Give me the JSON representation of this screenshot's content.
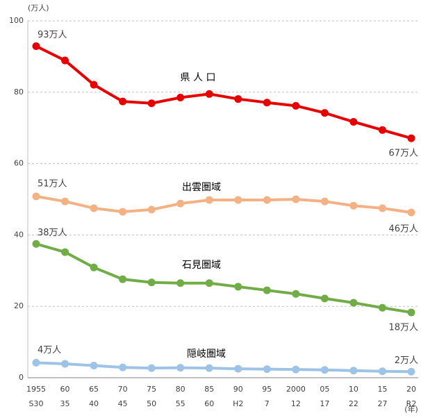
{
  "chart_data": {
    "type": "line",
    "y_unit": "(万人)",
    "x_unit": "(年)",
    "categories": [
      "1955",
      "60",
      "65",
      "70",
      "75",
      "80",
      "85",
      "90",
      "95",
      "2000",
      "05",
      "10",
      "15",
      "20"
    ],
    "era_labels": [
      "S30",
      "35",
      "40",
      "45",
      "50",
      "55",
      "60",
      "H2",
      "7",
      "12",
      "17",
      "22",
      "27",
      "R2"
    ],
    "ylim": [
      0,
      100
    ],
    "yticks": [
      0,
      20,
      40,
      60,
      80,
      100
    ],
    "grid": true,
    "series": [
      {
        "name": "県 人 口",
        "color": "#e60000",
        "values": [
          92.9,
          88.9,
          82.1,
          77.4,
          76.9,
          78.5,
          79.5,
          78.1,
          77.1,
          76.2,
          74.2,
          71.7,
          69.4,
          67.1
        ],
        "value_labels": [
          "93万人",
          null,
          null,
          null,
          null,
          null,
          null,
          null,
          null,
          null,
          null,
          null,
          null,
          "67万人"
        ]
      },
      {
        "name": "出雲圏域",
        "color": "#f4b183",
        "values": [
          50.8,
          49.4,
          47.5,
          46.5,
          47.1,
          48.8,
          49.8,
          49.8,
          49.8,
          50.0,
          49.4,
          48.2,
          47.5,
          46.3
        ],
        "value_labels": [
          "51万人",
          null,
          null,
          null,
          null,
          null,
          null,
          null,
          null,
          null,
          null,
          null,
          null,
          "46万人"
        ]
      },
      {
        "name": "石見圏域",
        "color": "#70ad47",
        "values": [
          37.5,
          35.2,
          30.9,
          27.6,
          26.7,
          26.5,
          26.5,
          25.5,
          24.5,
          23.5,
          22.2,
          21.0,
          19.6,
          18.3
        ],
        "value_labels": [
          "38万人",
          null,
          null,
          null,
          null,
          null,
          null,
          null,
          null,
          null,
          null,
          null,
          null,
          "18万人"
        ]
      },
      {
        "name": "隠岐圏域",
        "color": "#9dc3e6",
        "values": [
          4.2,
          3.9,
          3.4,
          2.9,
          2.7,
          2.8,
          2.7,
          2.5,
          2.4,
          2.3,
          2.2,
          2.0,
          1.8,
          1.7
        ],
        "value_labels": [
          "4万人",
          null,
          null,
          null,
          null,
          null,
          null,
          null,
          null,
          null,
          null,
          null,
          null,
          "2万人"
        ]
      }
    ]
  }
}
